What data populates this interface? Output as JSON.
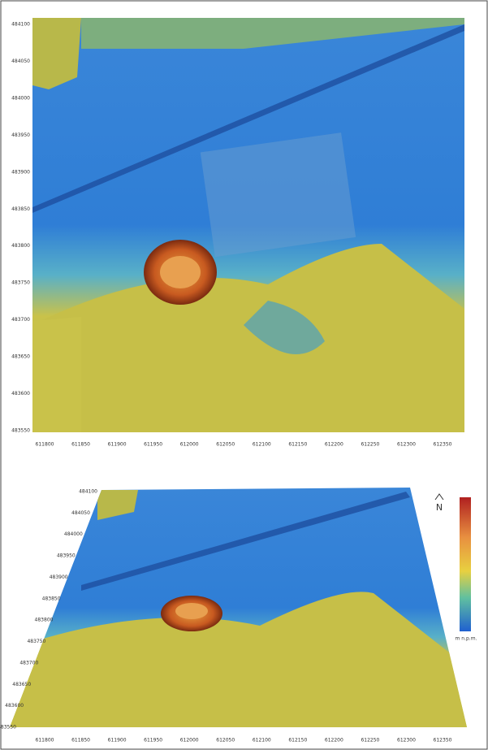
{
  "top_map": {
    "x_ticks": [
      "611800",
      "611850",
      "611900",
      "611950",
      "612000",
      "612050",
      "612100",
      "612150",
      "612200",
      "612250",
      "612300",
      "612350"
    ],
    "y_ticks": [
      "484100",
      "484050",
      "484000",
      "483950",
      "483900",
      "483850",
      "483800",
      "483750",
      "483700",
      "483650",
      "483600",
      "483550"
    ]
  },
  "bottom_map": {
    "x_ticks": [
      "611800",
      "611850",
      "611900",
      "611950",
      "612000",
      "612050",
      "612100",
      "612150",
      "612200",
      "612250",
      "612300",
      "612350"
    ],
    "y_ticks": [
      "484100",
      "484050",
      "484000",
      "483950",
      "483900",
      "483850",
      "483800",
      "483750",
      "483700",
      "483650",
      "483600",
      "483550"
    ]
  },
  "legend": {
    "unit": "m n.p.m.",
    "north": "N"
  }
}
